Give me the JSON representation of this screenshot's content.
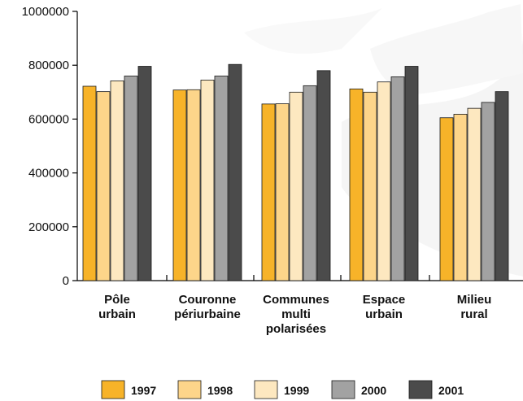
{
  "chart_data": {
    "type": "bar",
    "categories": [
      [
        "Pôle",
        "urbain"
      ],
      [
        "Couronne",
        "périurbaine"
      ],
      [
        "Communes",
        "multi",
        "polarisées"
      ],
      [
        "Espace",
        "urbain"
      ],
      [
        "Milieu",
        "rural"
      ]
    ],
    "series": [
      {
        "name": "1997",
        "color": "#F7B329",
        "values": [
          722000,
          708000,
          656000,
          712000,
          605000
        ]
      },
      {
        "name": "1998",
        "color": "#FDD58A",
        "values": [
          702000,
          709000,
          657000,
          700000,
          618000
        ]
      },
      {
        "name": "1999",
        "color": "#FDE8C0",
        "values": [
          742000,
          745000,
          700000,
          738000,
          640000
        ]
      },
      {
        "name": "2000",
        "color": "#A2A2A2",
        "values": [
          760000,
          760000,
          724000,
          757000,
          662000
        ]
      },
      {
        "name": "2001",
        "color": "#4B4B4B",
        "values": [
          796000,
          803000,
          780000,
          796000,
          702000
        ]
      }
    ],
    "ylim": [
      0,
      1000000
    ],
    "yticks": [
      "0",
      "200000",
      "400000",
      "600000",
      "800000",
      "1000000"
    ],
    "ytick_values": [
      0,
      200000,
      400000,
      600000,
      800000,
      1000000
    ],
    "legend_position": "bottom",
    "grid": false
  }
}
